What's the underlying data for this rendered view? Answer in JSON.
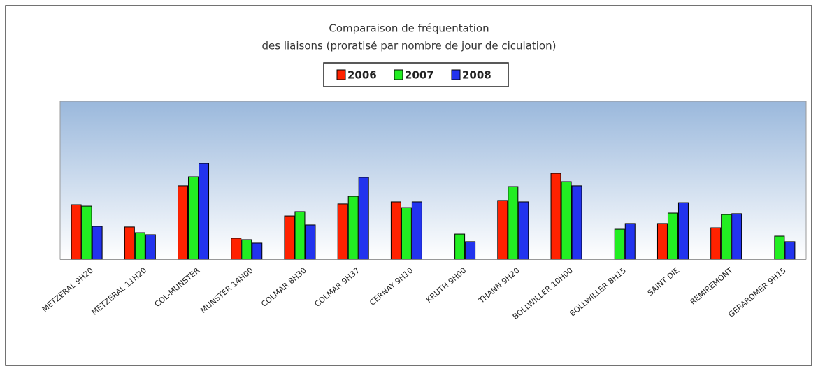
{
  "chart_data": {
    "type": "bar",
    "title": [
      "Comparaison de fréquentation",
      "des liaisons (proratisé par nombre de jour de ciculation)"
    ],
    "categories": [
      "METZERAL 9H20",
      "METZERAL 11H20",
      "COL-MUNSTER",
      "MUNSTER 14H00",
      "COLMAR 8H30",
      "COLMAR 9H37",
      "CERNAY 9H10",
      "KRUTH 9H00",
      "THANN 9H20",
      "BOLLWILLER 10H00",
      "BOLLWILLER 8H15",
      "SAINT DIE",
      "REMIREMONT",
      "GERARDMER 9H15"
    ],
    "series": [
      {
        "name": "2006",
        "color": "#ff2200",
        "values": [
          34.5,
          20.4,
          46.5,
          13.3,
          27.4,
          35,
          36.3,
          null,
          37.2,
          54.4,
          null,
          22.6,
          19.9,
          null
        ]
      },
      {
        "name": "2007",
        "color": "#22ee22",
        "values": [
          33.6,
          16.8,
          52.2,
          12.4,
          30.1,
          39.8,
          32.7,
          15.9,
          46,
          49.1,
          19,
          29.2,
          28.3,
          14.6
        ]
      },
      {
        "name": "2008",
        "color": "#2233ee",
        "values": [
          20.8,
          15.5,
          60.6,
          10.2,
          21.7,
          51.8,
          36.3,
          11.1,
          36.3,
          46.5,
          22.6,
          35.8,
          28.8,
          11.1
        ]
      }
    ],
    "ylim": [
      0,
      100
    ],
    "legend": "top"
  }
}
